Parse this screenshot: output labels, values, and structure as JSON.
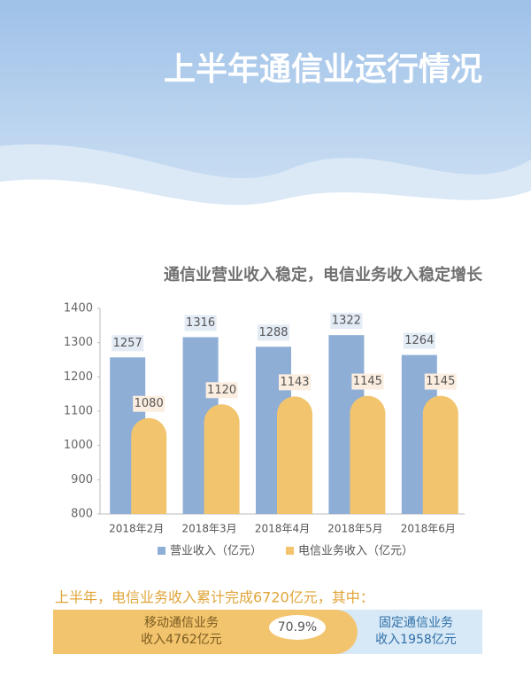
{
  "header": {
    "title": "上半年通信业运行情况"
  },
  "chart_data": {
    "type": "bar",
    "title": "通信业营业收入稳定，电信业务收入稳定增长",
    "categories": [
      "2018年2月",
      "2018年3月",
      "2018年4月",
      "2018年5月",
      "2018年6月"
    ],
    "series": [
      {
        "name": "营业收入（亿元）",
        "color": "#8eaed6",
        "values": [
          1257,
          1316,
          1288,
          1322,
          1264
        ]
      },
      {
        "name": "电信业务收入（亿元）",
        "color": "#f2c46d",
        "values": [
          1080,
          1120,
          1143,
          1145,
          1145
        ]
      }
    ],
    "ylim": [
      800,
      1400
    ],
    "yticks": [
      800,
      900,
      1000,
      1100,
      1200,
      1300,
      1400
    ],
    "grid": false
  },
  "summary": {
    "text": "上半年，电信业务收入累计完成6720亿元，其中：",
    "mobile": [
      "移动通信业务",
      "收入4762亿元"
    ],
    "fixed": [
      "固定通信业务",
      "收入1958亿元"
    ],
    "share": 70.9,
    "share_label": "70.9%"
  }
}
